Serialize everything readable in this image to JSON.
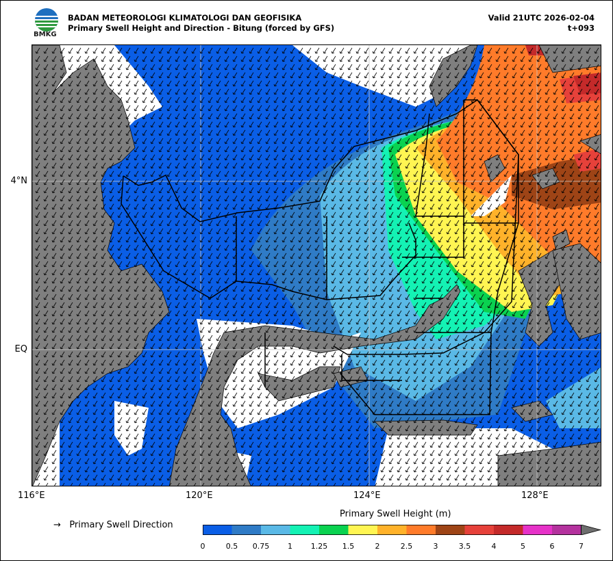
{
  "header": {
    "agency": "BADAN METEOROLOGI KLIMATOLOGI DAN GEOFISIKA",
    "subtitle": "Primary Swell Height and Direction - Bitung (forced by GFS)",
    "valid": "Valid 21UTC 2026-02-04",
    "lead": "t+093",
    "logo_text": "BMKG"
  },
  "axes": {
    "x_ticks": [
      "116°E",
      "120°E",
      "124°E",
      "128°E"
    ],
    "y_ticks": [
      "4°N",
      "EQ"
    ]
  },
  "legend": {
    "arrow_glyph": "→",
    "arrow_label": "Primary Swell Direction",
    "colorbar_title": "Primary Swell Height (m)",
    "levels": [
      "0",
      "0.5",
      "0.75",
      "1",
      "1.25",
      "1.5",
      "2",
      "2.5",
      "3",
      "3.5",
      "4",
      "5",
      "6",
      "7"
    ],
    "colors": [
      "#0a5ee6",
      "#2f7bc6",
      "#5ab9e6",
      "#14f2b4",
      "#0ad250",
      "#fff552",
      "#ffb22a",
      "#ff7b2a",
      "#9e4416",
      "#e6413a",
      "#c42a2a",
      "#e632c8",
      "#b4329e"
    ],
    "extend_color": "#6e6e6e"
  },
  "colors": {
    "land": "#7f7f7f",
    "no_data": "#ffffff",
    "grid": "#c8c8c8"
  }
}
